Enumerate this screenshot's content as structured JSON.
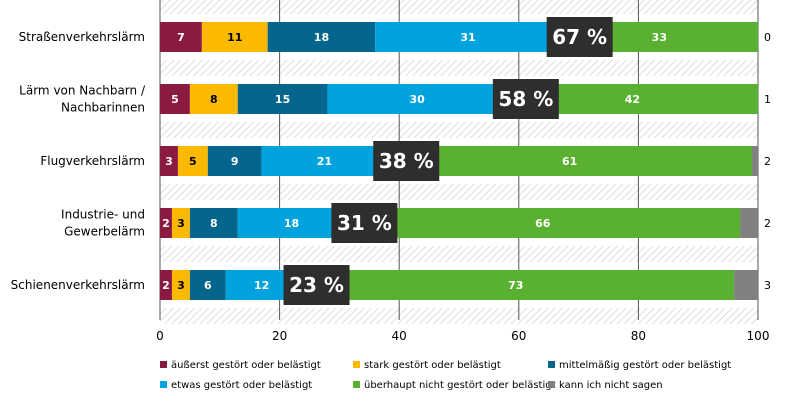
{
  "chart_data": {
    "type": "bar",
    "orientation": "horizontal",
    "stacked": true,
    "xlim": [
      0,
      100
    ],
    "xticks": [
      "0",
      "20",
      "40",
      "60",
      "80",
      "100"
    ],
    "categories": [
      [
        "Straßenverkehrslärm"
      ],
      [
        "Lärm von Nachbarn /",
        "Nachbarinnen"
      ],
      [
        "Flugverkehrslärm"
      ],
      [
        "Industrie- und",
        "Gewerbelärm"
      ],
      [
        "Schienenverkehrslärm"
      ]
    ],
    "series": [
      {
        "name": "äußerst gestört oder belästigt",
        "color": "#8b1a43",
        "text_color": "#ffffff",
        "values": [
          7,
          5,
          3,
          2,
          2
        ]
      },
      {
        "name": "stark gestört oder belästigt",
        "color": "#fbb900",
        "text_color": "#000000",
        "values": [
          11,
          8,
          5,
          3,
          3
        ]
      },
      {
        "name": "mittelmäßig gestört oder belästigt",
        "color": "#05668d",
        "text_color": "#ffffff",
        "values": [
          18,
          15,
          9,
          8,
          6
        ]
      },
      {
        "name": "etwas gestört oder belästigt",
        "color": "#00a3dd",
        "text_color": "#ffffff",
        "values": [
          31,
          30,
          21,
          18,
          12
        ]
      },
      {
        "name": "überhaupt nicht gestört oder belästigt",
        "color": "#5ab031",
        "text_color": "#ffffff",
        "values": [
          33,
          42,
          61,
          66,
          73
        ]
      },
      {
        "name": "kann ich nicht sagen",
        "color": "#808080",
        "text_color": "#000000",
        "values": [
          0,
          1,
          2,
          2,
          3
        ]
      }
    ],
    "highlights": [
      "67 %",
      "58 %",
      "38 %",
      "31 %",
      "23 %"
    ],
    "legend_position": "bottom"
  }
}
